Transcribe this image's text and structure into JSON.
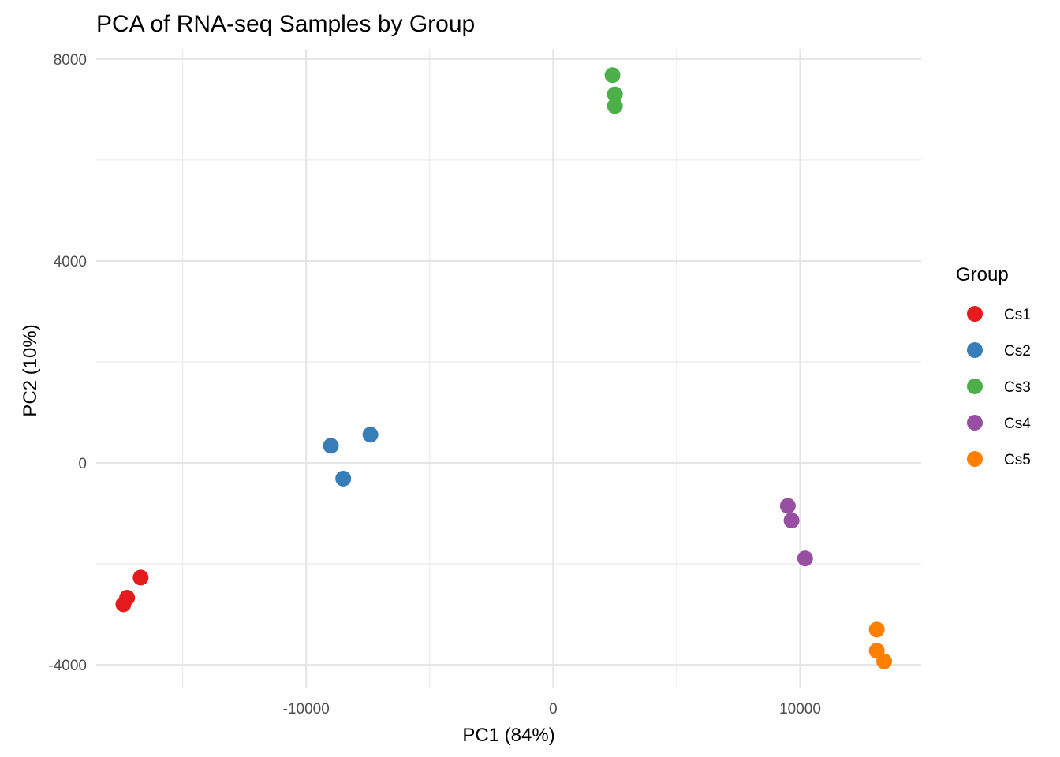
{
  "chart_data": {
    "type": "scatter",
    "title": "PCA of RNA-seq Samples by Group",
    "xlabel": "PC1 (84%)",
    "ylabel": "PC2 (10%)",
    "xlim": [
      -18500,
      14900
    ],
    "ylim": [
      -4450,
      8200
    ],
    "x_ticks": [
      {
        "value": -10000,
        "label": "-10000"
      },
      {
        "value": 0,
        "label": "0"
      },
      {
        "value": 10000,
        "label": "10000"
      }
    ],
    "y_ticks": [
      {
        "value": -4000,
        "label": "-4000"
      },
      {
        "value": 0,
        "label": "0"
      },
      {
        "value": 4000,
        "label": "4000"
      },
      {
        "value": 8000,
        "label": "8000"
      }
    ],
    "x_minor": [
      -15000,
      -5000,
      5000
    ],
    "y_minor": [
      -2000,
      2000,
      6000
    ],
    "grid": true,
    "legend": {
      "title": "Group",
      "position": "right"
    },
    "series": [
      {
        "name": "Cs1",
        "color": "#E41A1C",
        "points": [
          {
            "x": -16700,
            "y": -2270
          },
          {
            "x": -17250,
            "y": -2670
          },
          {
            "x": -17400,
            "y": -2800
          }
        ]
      },
      {
        "name": "Cs2",
        "color": "#377EB8",
        "points": [
          {
            "x": -7400,
            "y": 560
          },
          {
            "x": -9000,
            "y": 340
          },
          {
            "x": -8500,
            "y": -310
          }
        ]
      },
      {
        "name": "Cs3",
        "color": "#4DAF4A",
        "points": [
          {
            "x": 2400,
            "y": 7680
          },
          {
            "x": 2500,
            "y": 7300
          },
          {
            "x": 2500,
            "y": 7070
          }
        ]
      },
      {
        "name": "Cs4",
        "color": "#984EA3",
        "points": [
          {
            "x": 9500,
            "y": -850
          },
          {
            "x": 9650,
            "y": -1140
          },
          {
            "x": 10200,
            "y": -1890
          }
        ]
      },
      {
        "name": "Cs5",
        "color": "#FF7F00",
        "points": [
          {
            "x": 13100,
            "y": -3300
          },
          {
            "x": 13100,
            "y": -3720
          },
          {
            "x": 13400,
            "y": -3930
          }
        ]
      }
    ]
  }
}
